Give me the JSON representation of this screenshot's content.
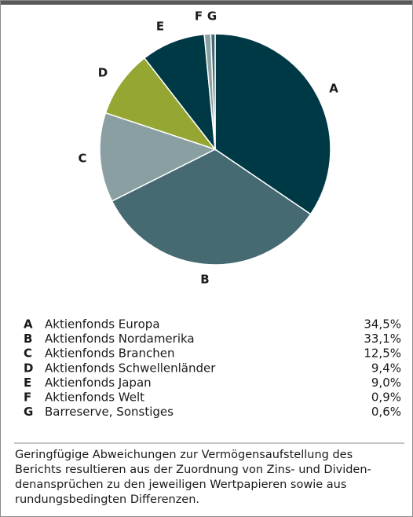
{
  "chart_data": {
    "type": "pie",
    "categories": [
      "A",
      "B",
      "C",
      "D",
      "E",
      "F",
      "G"
    ],
    "legend_labels": [
      "Aktienfonds Europa",
      "Aktienfonds Nordamerika",
      "Aktienfonds Branchen",
      "Aktienfonds Schwellenländer",
      "Aktienfonds Japan",
      "Aktienfonds Welt",
      "Barreserve, Sonstiges"
    ],
    "values": [
      34.5,
      33.1,
      12.5,
      9.4,
      9.0,
      0.9,
      0.6
    ],
    "value_labels": [
      "34,5%",
      "33,1%",
      "12,5%",
      "9,4%",
      "9,0%",
      "0,9%",
      "0,6%"
    ],
    "colors": [
      "#003946",
      "#456a72",
      "#8a9fa2",
      "#95a633",
      "#003946",
      "#8a9fa2",
      "#456a72"
    ],
    "footnote": [
      "Geringfügige Abweichungen zur Vermögensaufstellung des",
      "Berichts resultieren aus der Zuordnung von Zins- und Dividen-",
      "denansprüchen zu den jeweiligen Wertpapieren sowie aus",
      "rundungsbedingten Differenzen."
    ]
  }
}
